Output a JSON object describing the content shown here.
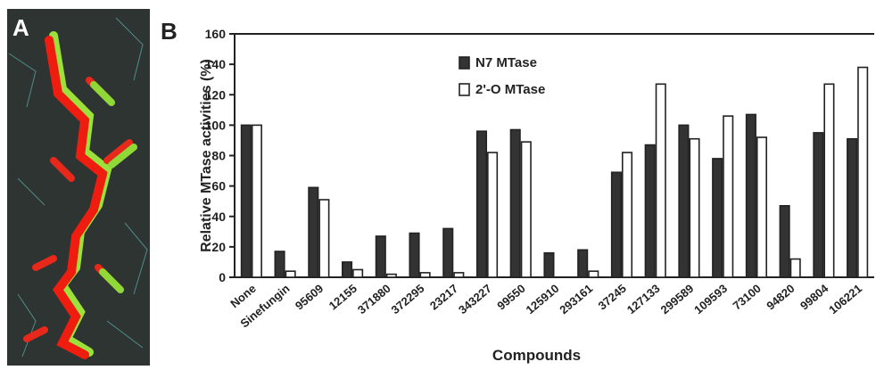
{
  "panels": {
    "a": "A",
    "b": "B"
  },
  "chart_data": {
    "type": "bar",
    "xlabel": "Compounds",
    "ylabel": "Relative MTase activities (%)",
    "categories": [
      "None",
      "Sinefungin",
      "95609",
      "12155",
      "371880",
      "372295",
      "23217",
      "343227",
      "99550",
      "125910",
      "293161",
      "37245",
      "127133",
      "299589",
      "109593",
      "73100",
      "94820",
      "99804",
      "106221"
    ],
    "series": [
      {
        "name": "N7 MTase",
        "color": "#333333",
        "values": [
          100,
          17,
          59,
          10,
          27,
          29,
          32,
          96,
          97,
          16,
          18,
          69,
          87,
          100,
          78,
          107,
          47,
          95,
          91
        ]
      },
      {
        "name": "2'-O MTase",
        "color": "#ffffff",
        "values": [
          100,
          4,
          51,
          5,
          2,
          3,
          3,
          82,
          89,
          0,
          4,
          82,
          127,
          91,
          106,
          92,
          12,
          127,
          138
        ]
      }
    ],
    "ylim": [
      0,
      160
    ],
    "yticks": [
      0,
      20,
      40,
      60,
      80,
      100,
      120,
      140,
      160
    ],
    "legend": "upper center",
    "grid": false
  }
}
